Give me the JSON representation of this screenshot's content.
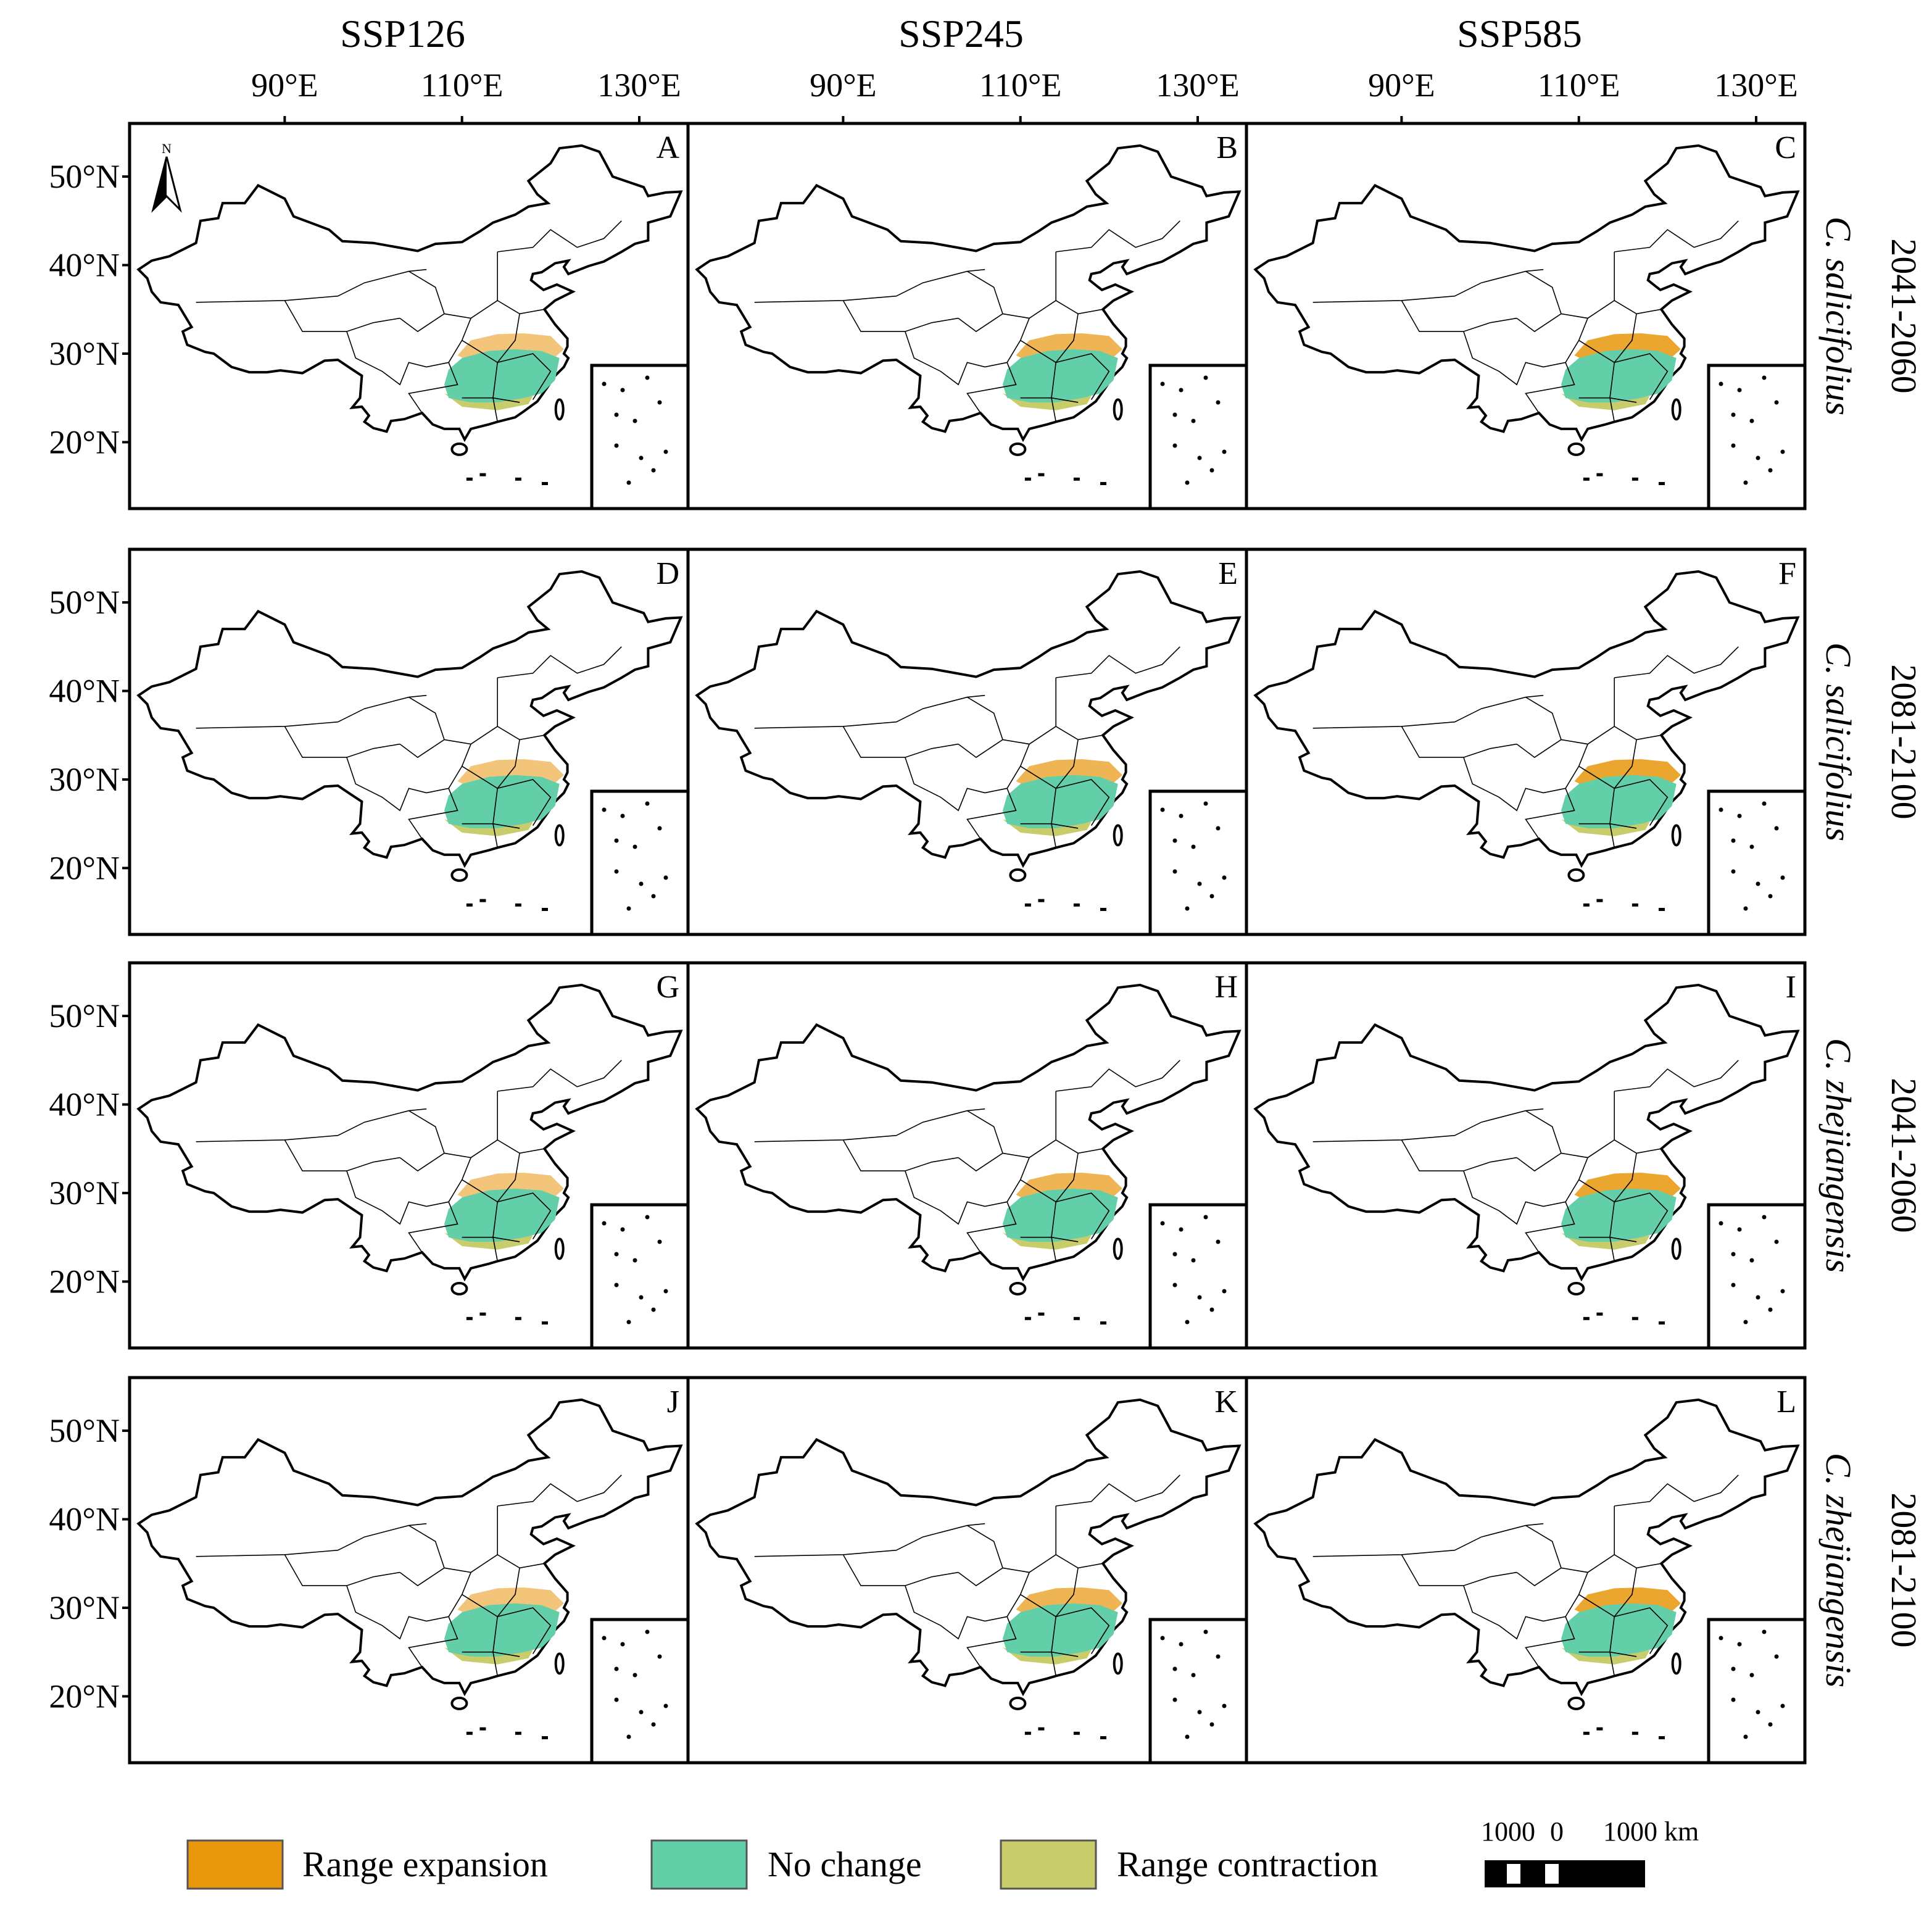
{
  "columns": [
    "SSP126",
    "SSP245",
    "SSP585"
  ],
  "rows": [
    {
      "period": "2041-2060",
      "species": "C. salicifolius"
    },
    {
      "period": "2081-2100",
      "species": "C. salicifolius"
    },
    {
      "period": "2041-2060",
      "species": "C. zhejiangensis"
    },
    {
      "period": "2081-2100",
      "species": "C. zhejiangensis"
    }
  ],
  "panels": [
    "A",
    "B",
    "C",
    "D",
    "E",
    "F",
    "G",
    "H",
    "I",
    "J",
    "K",
    "L"
  ],
  "lon_range": [
    72.5,
    135.5
  ],
  "lat_range": [
    12.5,
    56
  ],
  "x_ticks": [
    {
      "value": 90,
      "label": "90°E"
    },
    {
      "value": 110,
      "label": "110°E"
    },
    {
      "value": 130,
      "label": "130°E"
    }
  ],
  "y_ticks": [
    {
      "value": 50,
      "label": "50°N"
    },
    {
      "value": 40,
      "label": "40°N"
    },
    {
      "value": 30,
      "label": "30°N"
    },
    {
      "value": 20,
      "label": "20°N"
    }
  ],
  "north_label": "N",
  "legend": [
    {
      "label": "Range expansion",
      "color": "#e8960c"
    },
    {
      "label": "No change",
      "color": "#62cfa8"
    },
    {
      "label": "Range contraction",
      "color": "#c9cc6b"
    }
  ],
  "scale_bar": [
    "1000",
    "0",
    "1000 km"
  ]
}
